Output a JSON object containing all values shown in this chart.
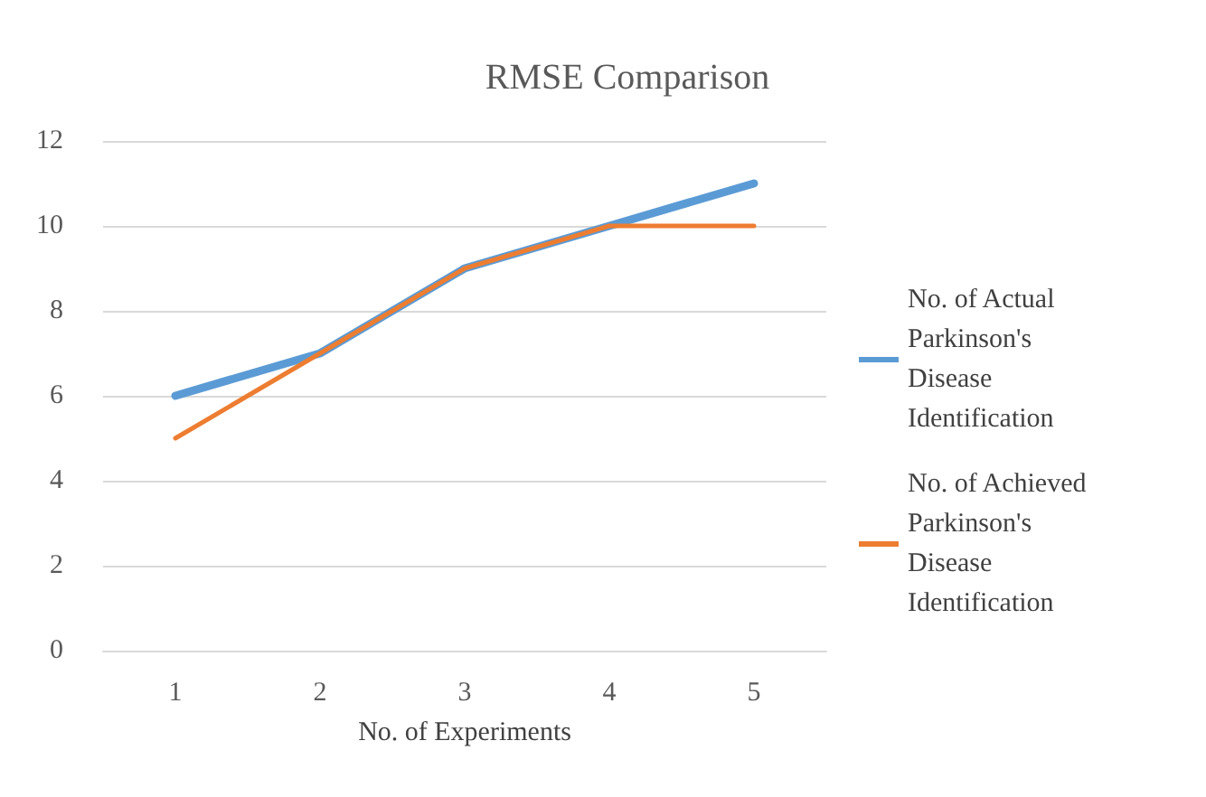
{
  "chart_data": {
    "type": "line",
    "title": "RMSE Comparison",
    "xlabel": "No. of Experiments",
    "categories": [
      "1",
      "2",
      "3",
      "4",
      "5"
    ],
    "series": [
      {
        "name": "No. of Actual Parkinson's Disease Identification",
        "color": "#5b9bd5",
        "values": [
          6,
          7,
          9,
          10,
          11
        ]
      },
      {
        "name": "No. of Achieved Parkinson's Disease Identification",
        "color": "#ed7d31",
        "values": [
          5,
          7,
          9,
          10,
          10
        ]
      }
    ],
    "ylim": [
      0,
      12
    ],
    "yticks": [
      0,
      2,
      4,
      6,
      8,
      10,
      12
    ],
    "grid": "y",
    "legend": "right",
    "marker": "none"
  }
}
